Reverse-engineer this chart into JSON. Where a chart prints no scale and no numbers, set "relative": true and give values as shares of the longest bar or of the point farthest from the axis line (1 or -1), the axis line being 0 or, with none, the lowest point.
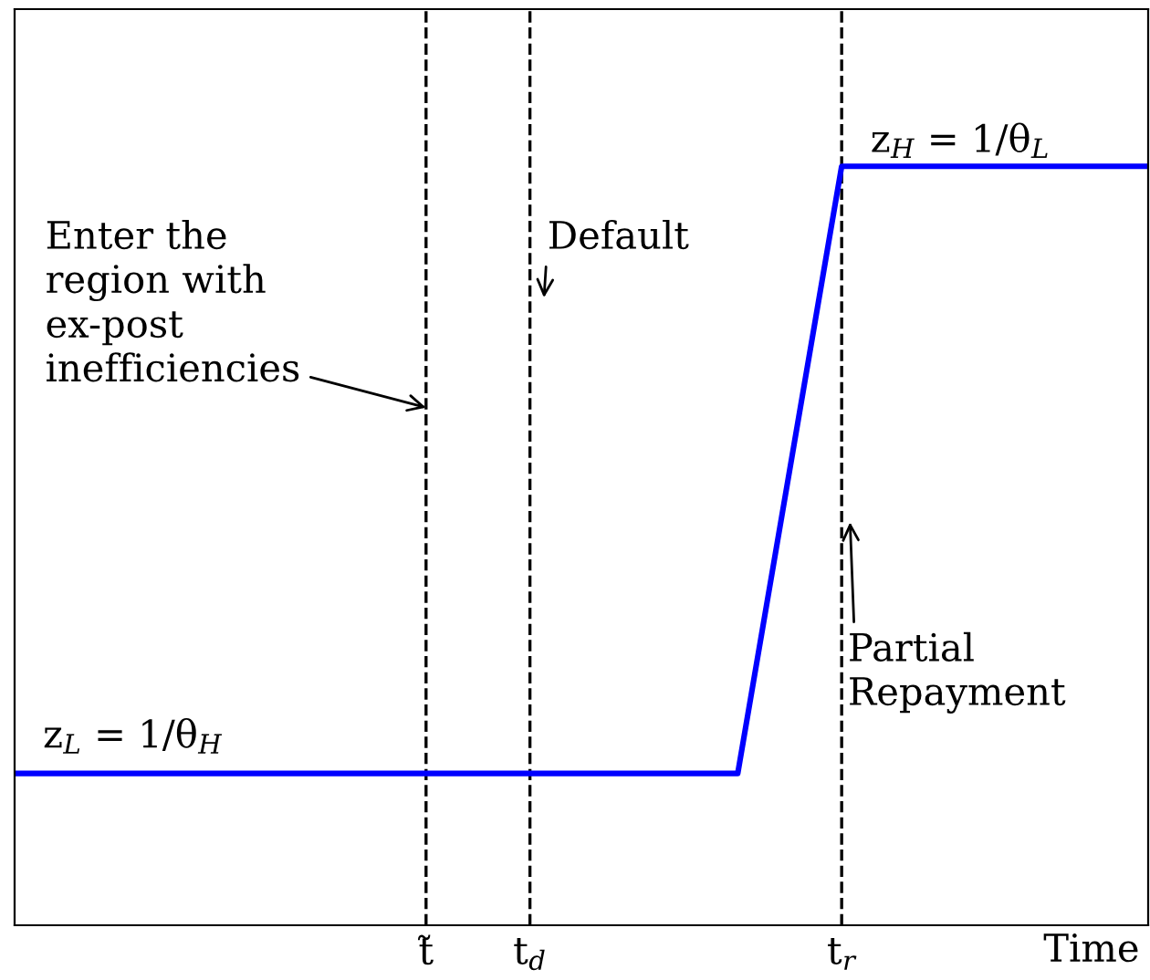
{
  "chart_data": {
    "type": "line",
    "relative": true,
    "xlabel": "Time",
    "categories": [
      null,
      null,
      null,
      null,
      "t̃",
      "t$_{d}$",
      null,
      null,
      "t$_{r}$",
      null,
      null,
      null
    ],
    "series": [
      {
        "color": "#0000ff",
        "values": [
          0.2,
          0.2,
          0.2,
          0.2,
          0.2,
          0.2,
          0.2,
          0.2,
          1,
          1,
          1,
          1
        ]
      }
    ],
    "ref_lines": [
      {
        "axis": "x",
        "value": "t̃",
        "color": "#000000",
        "line_style": "dashed"
      },
      {
        "axis": "x",
        "value": "t$_{d}$",
        "color": "#000000",
        "line_style": "dashed"
      },
      {
        "axis": "x",
        "value": "t$_{r}$",
        "color": "#000000",
        "line_style": "dashed"
      }
    ],
    "annotations": [
      "Enter the\nregion with\nex-post\ninefficiencies",
      "Default",
      "Partial\nRepayment",
      "z$_{L}$ = 1/θ$_{H}$",
      "z$_{H}$ = 1/θ$_{L}$"
    ],
    "tick_labels": "x",
    "line_style": "solid",
    "marker": "none"
  }
}
